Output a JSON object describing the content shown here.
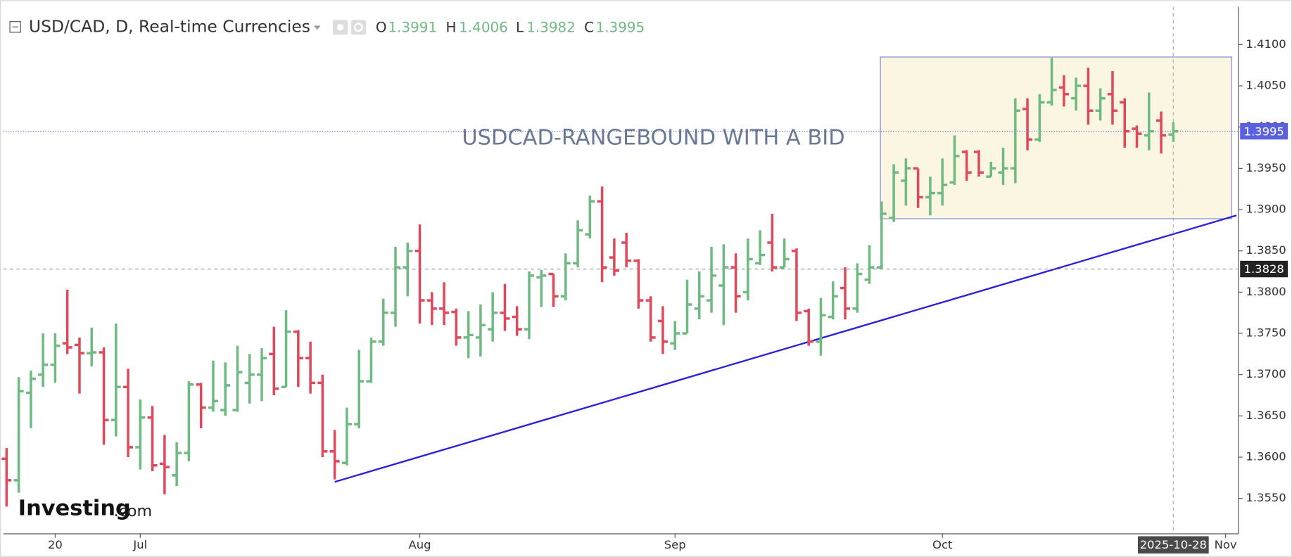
{
  "chart_data": {
    "type": "ohlc",
    "title": "USD/CAD, D, Real-time Currencies",
    "ohlc_labels": [
      "O",
      "H",
      "L",
      "C"
    ],
    "annotation_text": "USDCAD-RANGEBOUND WITH A BID",
    "watermark": [
      "Investing",
      ".com"
    ],
    "up_color": "#6fba82",
    "down_color": "#e0485c",
    "open": [
      1.3598,
      1.3572,
      1.3678,
      1.37,
      1.3712,
      1.3738,
      1.3736,
      1.3726,
      1.3727,
      1.3645,
      1.3685,
      1.3612,
      1.3648,
      1.3592,
      1.3578,
      1.3605,
      1.3688,
      1.366,
      1.3657,
      1.3657,
      1.369,
      1.37,
      1.3725,
      1.3685,
      1.3752,
      1.372,
      1.369,
      1.3607,
      1.3593,
      1.364,
      1.3692,
      1.374,
      1.3775,
      1.383,
      1.385,
      1.379,
      1.378,
      1.3776,
      1.3745,
      1.3745,
      1.3755,
      1.3775,
      1.377,
      1.3755,
      1.3818,
      1.3822,
      1.3795,
      1.3835,
      1.387,
      1.391,
      1.3842,
      1.386,
      1.3838,
      1.379,
      1.3765,
      1.3738,
      1.375,
      1.378,
      1.379,
      1.3808,
      1.383,
      1.38,
      1.3835,
      1.386,
      1.383,
      1.385,
      1.3777,
      1.374,
      1.377,
      1.3805,
      1.378,
      1.3815,
      1.383,
      1.389,
      1.3935,
      1.395,
      1.3915,
      1.392,
      1.3933,
      1.397,
      1.397,
      1.394,
      1.3945,
      1.395,
      1.4022,
      1.3985,
      1.403,
      1.4048,
      1.4035,
      1.405,
      1.402,
      1.404,
      1.403,
      1.3998,
      1.399,
      1.4008,
      1.3991
    ],
    "high": [
      1.3611,
      1.3697,
      1.3705,
      1.375,
      1.375,
      1.3803,
      1.3745,
      1.3757,
      1.3733,
      1.3762,
      1.3707,
      1.367,
      1.3662,
      1.3627,
      1.3618,
      1.3692,
      1.369,
      1.3717,
      1.3715,
      1.3735,
      1.3725,
      1.3732,
      1.3758,
      1.3778,
      1.3754,
      1.374,
      1.37,
      1.3633,
      1.366,
      1.373,
      1.3745,
      1.3792,
      1.3855,
      1.386,
      1.3882,
      1.38,
      1.3812,
      1.378,
      1.3777,
      1.3785,
      1.38,
      1.381,
      1.3783,
      1.3825,
      1.3827,
      1.3822,
      1.3847,
      1.3887,
      1.3917,
      1.3928,
      1.3865,
      1.3872,
      1.384,
      1.3795,
      1.3783,
      1.3765,
      1.3815,
      1.3825,
      1.3855,
      1.3858,
      1.3847,
      1.3865,
      1.3875,
      1.3895,
      1.3865,
      1.3853,
      1.378,
      1.3793,
      1.3813,
      1.383,
      1.3835,
      1.3857,
      1.391,
      1.3955,
      1.3962,
      1.395,
      1.394,
      1.3962,
      1.399,
      1.3972,
      1.3972,
      1.3958,
      1.3975,
      1.4035,
      1.4035,
      1.404,
      1.4084,
      1.4063,
      1.406,
      1.4072,
      1.4047,
      1.4068,
      1.4035,
      1.4002,
      1.4042,
      1.4019,
      1.4006
    ],
    "low": [
      1.354,
      1.3557,
      1.3635,
      1.3685,
      1.369,
      1.3725,
      1.3677,
      1.371,
      1.3615,
      1.3625,
      1.36,
      1.3585,
      1.3583,
      1.3555,
      1.3565,
      1.3595,
      1.3635,
      1.3655,
      1.365,
      1.3655,
      1.3665,
      1.3668,
      1.3675,
      1.3685,
      1.3685,
      1.3677,
      1.36,
      1.3573,
      1.359,
      1.3635,
      1.369,
      1.3735,
      1.3758,
      1.3795,
      1.3762,
      1.376,
      1.376,
      1.3735,
      1.372,
      1.3722,
      1.374,
      1.3753,
      1.3747,
      1.3743,
      1.3782,
      1.3782,
      1.379,
      1.383,
      1.3865,
      1.3812,
      1.382,
      1.383,
      1.378,
      1.374,
      1.3725,
      1.373,
      1.375,
      1.3767,
      1.3775,
      1.376,
      1.3775,
      1.379,
      1.3833,
      1.3825,
      1.383,
      1.3765,
      1.3735,
      1.3723,
      1.3767,
      1.3767,
      1.3775,
      1.381,
      1.3828,
      1.3885,
      1.3905,
      1.3902,
      1.3893,
      1.3905,
      1.393,
      1.3935,
      1.394,
      1.394,
      1.393,
      1.3932,
      1.3972,
      1.3982,
      1.4026,
      1.4025,
      1.402,
      1.4003,
      1.4008,
      1.4003,
      1.3975,
      1.3975,
      1.3972,
      1.3968,
      1.3982
    ],
    "close": [
      1.3572,
      1.368,
      1.3695,
      1.3712,
      1.3735,
      1.3733,
      1.3726,
      1.3727,
      1.3645,
      1.3685,
      1.3612,
      1.3648,
      1.359,
      1.3588,
      1.3605,
      1.3688,
      1.366,
      1.3668,
      1.3687,
      1.3703,
      1.37,
      1.372,
      1.3683,
      1.3752,
      1.372,
      1.369,
      1.3607,
      1.3595,
      1.364,
      1.3692,
      1.374,
      1.3775,
      1.383,
      1.385,
      1.379,
      1.378,
      1.3775,
      1.3745,
      1.3748,
      1.376,
      1.3775,
      1.3768,
      1.3755,
      1.382,
      1.382,
      1.3795,
      1.3835,
      1.3875,
      1.391,
      1.383,
      1.3826,
      1.3838,
      1.379,
      1.3745,
      1.374,
      1.375,
      1.3785,
      1.3795,
      1.382,
      1.383,
      1.3795,
      1.384,
      1.3845,
      1.383,
      1.384,
      1.3775,
      1.374,
      1.3772,
      1.3795,
      1.378,
      1.3822,
      1.383,
      1.3895,
      1.3945,
      1.395,
      1.3915,
      1.392,
      1.393,
      1.3965,
      1.3945,
      1.3945,
      1.395,
      1.395,
      1.402,
      1.3985,
      1.403,
      1.4045,
      1.404,
      1.405,
      1.402,
      1.4035,
      1.402,
      1.3995,
      1.3992,
      1.3995,
      1.399,
      1.3995
    ],
    "xlim": [
      -0.27,
      101.36
    ],
    "xticks": [
      {
        "value": 4,
        "label": "20"
      },
      {
        "value": 11,
        "label": "Jul"
      },
      {
        "value": 34,
        "label": "Aug"
      },
      {
        "value": 55,
        "label": "Sep"
      },
      {
        "value": 77,
        "label": "Oct"
      },
      {
        "value": 100.3,
        "label": "Nov"
      }
    ],
    "ylim": [
      1.35071,
      1.41459
    ],
    "yticks": [
      {
        "value": 1.355,
        "label": "1.3550"
      },
      {
        "value": 1.36,
        "label": "1.3600"
      },
      {
        "value": 1.365,
        "label": "1.3650"
      },
      {
        "value": 1.37,
        "label": "1.3700"
      },
      {
        "value": 1.375,
        "label": "1.3750"
      },
      {
        "value": 1.38,
        "label": "1.3800"
      },
      {
        "value": 1.385,
        "label": "1.3850"
      },
      {
        "value": 1.39,
        "label": "1.3900"
      },
      {
        "value": 1.395,
        "label": "1.3950"
      },
      {
        "value": 1.4,
        "label": "1.4000"
      },
      {
        "value": 1.405,
        "label": "1.4050"
      },
      {
        "value": 1.41,
        "label": "1.4100"
      }
    ],
    "annotations": {
      "trendline": {
        "x": [
          27,
          101.2
        ],
        "y": [
          1.357,
          1.3893
        ]
      },
      "range_box": {
        "x": [
          71.9,
          100.8
        ],
        "y": [
          1.3889,
          1.4085
        ]
      }
    },
    "crosshair": {
      "x": {
        "value": 96,
        "label": "2025-10-28"
      },
      "y": 1.3828
    }
  }
}
